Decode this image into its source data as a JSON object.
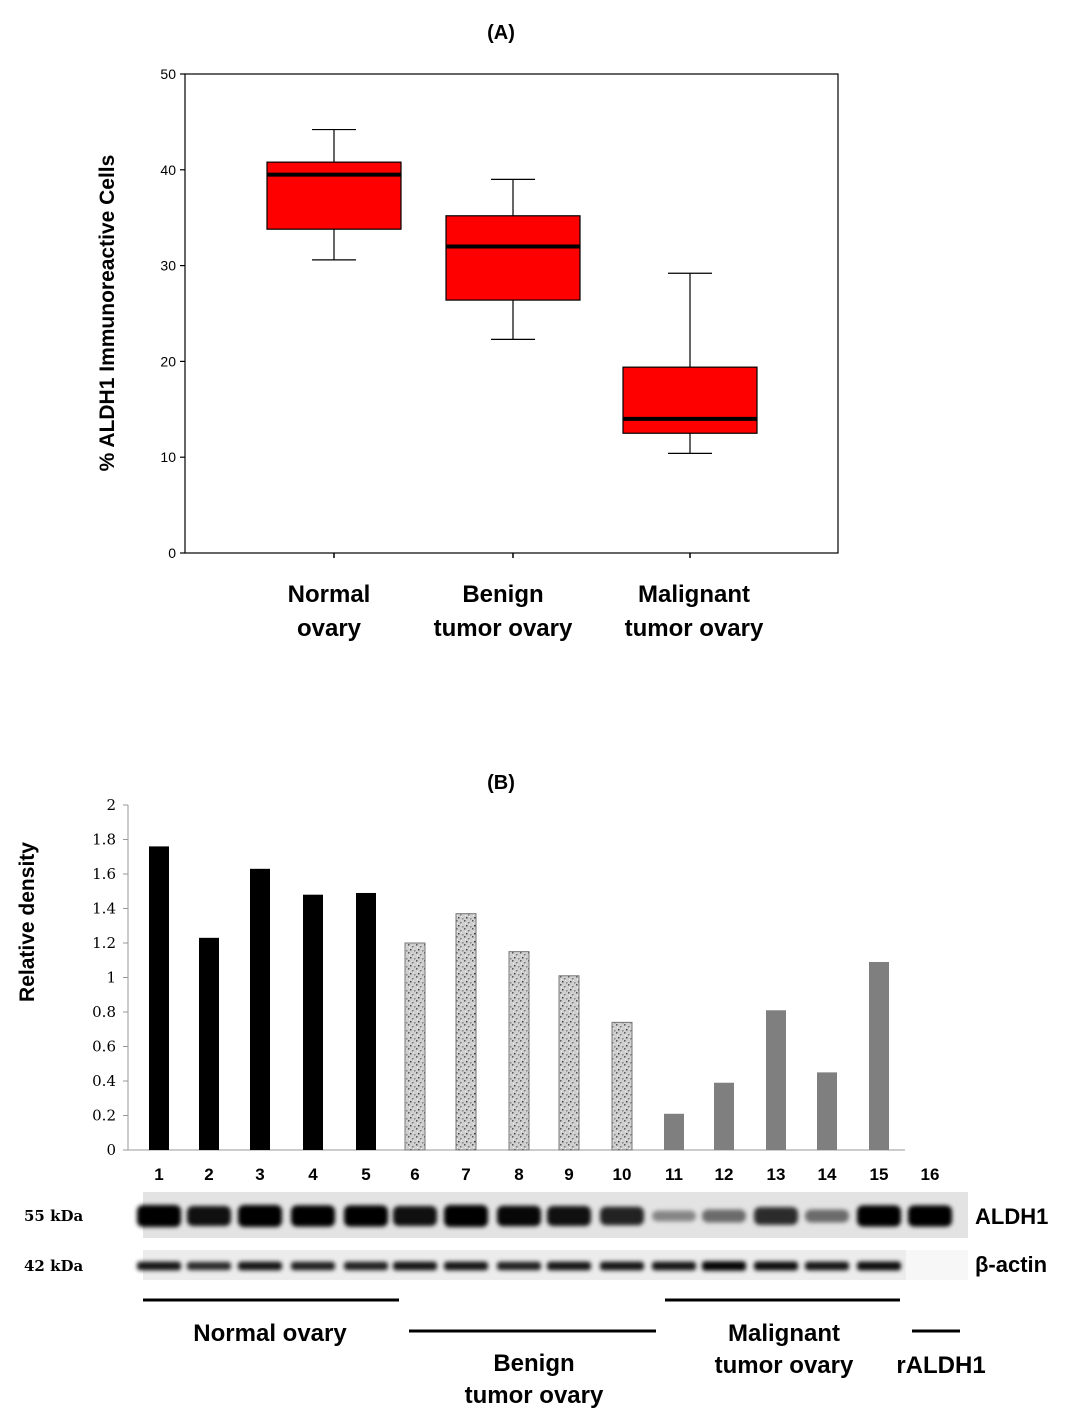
{
  "chart_data": [
    {
      "type": "boxplot",
      "panel_label": "(A)",
      "ylabel": "% ALDH1 Immunoreactive Cells",
      "ylim": [
        0,
        50
      ],
      "yticks": [
        0,
        10,
        20,
        30,
        40,
        50
      ],
      "grid": false,
      "box_color": "#ff0000",
      "categories": [
        [
          "Normal",
          "ovary"
        ],
        [
          "Benign",
          "tumor ovary"
        ],
        [
          "Malignant",
          "tumor ovary"
        ]
      ],
      "boxes": [
        {
          "min": 30.6,
          "q1": 33.8,
          "median": 39.5,
          "q3": 40.8,
          "max": 44.2
        },
        {
          "min": 22.3,
          "q1": 26.4,
          "median": 32.0,
          "q3": 35.2,
          "max": 39.0
        },
        {
          "min": 10.4,
          "q1": 12.5,
          "median": 14.0,
          "q3": 19.4,
          "max": 29.2
        }
      ]
    },
    {
      "type": "bar",
      "panel_label": "(B)",
      "ylabel": "Relative density",
      "ylim": [
        0,
        2
      ],
      "yticks": [
        "0",
        "0.2",
        "0.4",
        "0.6",
        "0.8",
        "1",
        "1.2",
        "1.4",
        "1.6",
        "1.8",
        "2"
      ],
      "grid": false,
      "categories": [
        "1",
        "2",
        "3",
        "4",
        "5",
        "6",
        "7",
        "8",
        "9",
        "10",
        "11",
        "12",
        "13",
        "14",
        "15",
        "16"
      ],
      "values": [
        1.76,
        1.23,
        1.63,
        1.48,
        1.49,
        1.2,
        1.37,
        1.15,
        1.01,
        0.74,
        0.21,
        0.39,
        0.81,
        0.45,
        1.09,
        null
      ],
      "groups": [
        {
          "label_lines": [
            "Normal ovary"
          ],
          "lanes": [
            1,
            5
          ],
          "color": "#000000",
          "pattern": "solid"
        },
        {
          "label_lines": [
            "Benign",
            "tumor ovary"
          ],
          "lanes": [
            6,
            10
          ],
          "color": "#c8c8c8",
          "pattern": "speckled"
        },
        {
          "label_lines": [
            "Malignant",
            "tumor ovary"
          ],
          "lanes": [
            11,
            15
          ],
          "color": "#7f7f7f",
          "pattern": "solid"
        },
        {
          "label_lines": [
            "rALDH1"
          ],
          "lanes": [
            16,
            16
          ],
          "color": "#000000",
          "pattern": "none"
        }
      ],
      "blot": {
        "rows": [
          {
            "marker": "55 kDa",
            "protein": "ALDH1",
            "band_intensity": [
              1.0,
              0.85,
              1.0,
              0.95,
              0.95,
              0.85,
              1.0,
              0.9,
              0.85,
              0.75,
              0.2,
              0.35,
              0.7,
              0.35,
              0.95,
              0.95
            ]
          },
          {
            "marker": "42 kDa",
            "protein": "β-actin",
            "band_intensity": [
              0.8,
              0.7,
              0.8,
              0.75,
              0.75,
              0.8,
              0.8,
              0.75,
              0.8,
              0.8,
              0.8,
              0.9,
              0.85,
              0.8,
              0.85,
              0
            ]
          }
        ]
      }
    }
  ]
}
